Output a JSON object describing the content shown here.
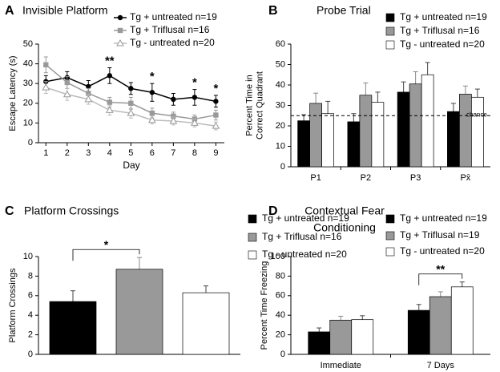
{
  "chart_data": [
    {
      "type": "line",
      "panel": "A",
      "title": [
        "Invisible Platform"
      ],
      "xlabel": "Day",
      "ylabel": [
        "Escape Latency (s)"
      ],
      "x": [
        1,
        2,
        3,
        4,
        5,
        6,
        7,
        8,
        9
      ],
      "xlim": [
        0.65,
        9.4
      ],
      "xticks": [
        1,
        2,
        3,
        4,
        5,
        6,
        7,
        8,
        9
      ],
      "ylim": [
        0,
        50
      ],
      "yticks": [
        0,
        10,
        20,
        30,
        40,
        50
      ],
      "series": [
        {
          "name": "Tg + untreated n=19",
          "color": "#000000",
          "marker": "circle",
          "values": [
            31,
            33,
            28.5,
            34,
            27.5,
            25.5,
            22,
            23,
            21
          ],
          "errors": [
            3,
            3,
            3,
            4,
            3,
            4.5,
            3,
            4,
            3
          ]
        },
        {
          "name": "Tg +  Triflusal n=16",
          "color": "#999999",
          "marker": "square",
          "values": [
            39.5,
            30.5,
            25,
            20.5,
            20,
            15,
            13.5,
            12,
            14
          ],
          "errors": [
            4,
            3,
            2.5,
            2.5,
            3,
            2.5,
            2,
            2,
            2.5
          ]
        },
        {
          "name": "Tg - untreated n=20",
          "color": "#bbbbbb",
          "marker": "triangle",
          "values": [
            28,
            24.5,
            22,
            16.5,
            15,
            11.5,
            11,
            10,
            8.5
          ],
          "errors": [
            3,
            3,
            2.5,
            2.5,
            2.5,
            2,
            2,
            2,
            2
          ]
        }
      ],
      "annotations": [
        "**",
        "*",
        "*",
        "*"
      ]
    },
    {
      "type": "bar",
      "panel": "B",
      "title": [
        "Probe Trial"
      ],
      "ylabel": [
        "Percent Time in",
        "Correct Quadrant"
      ],
      "categories": [
        "P1",
        "P2",
        "P3",
        "Px̄"
      ],
      "ylim": [
        0,
        60
      ],
      "yticks": [
        0,
        10,
        20,
        30,
        40,
        50,
        60
      ],
      "series": [
        {
          "name": "Tg + untreated n=19",
          "color": "#000000",
          "values": [
            22.5,
            22,
            36.5,
            27
          ],
          "errors": [
            3,
            4,
            5,
            4
          ]
        },
        {
          "name": "Tg +  Triflusal n=16",
          "color": "#999999",
          "values": [
            31,
            35,
            40.5,
            35.5
          ],
          "errors": [
            5,
            6,
            6,
            4
          ]
        },
        {
          "name": "Tg - untreated n=20",
          "color": "#ffffff",
          "values": [
            26,
            31.5,
            45,
            34
          ],
          "errors": [
            6,
            5,
            6,
            4
          ]
        }
      ],
      "reference_line": {
        "value": 25,
        "label": "chance"
      }
    },
    {
      "type": "bar",
      "panel": "C",
      "title": [
        "Platform Crossings"
      ],
      "ylabel": [
        "Platform Crossings"
      ],
      "categories": [
        null
      ],
      "ylim": [
        0,
        10
      ],
      "yticks": [
        0,
        2,
        4,
        6,
        8,
        10
      ],
      "series": [
        {
          "name": "Tg + untreated n=19",
          "color": "#000000",
          "values": [
            5.4
          ],
          "errors": [
            1.1
          ]
        },
        {
          "name": "Tg +  Triflusal n=16",
          "color": "#999999",
          "values": [
            8.7
          ],
          "errors": [
            1.2
          ]
        },
        {
          "name": "Tg - untreated n=20",
          "color": "#ffffff",
          "values": [
            6.3
          ],
          "errors": [
            0.7
          ]
        }
      ],
      "annotations": [
        "*"
      ]
    },
    {
      "type": "bar",
      "panel": "D",
      "title": [
        "Contextual Fear",
        "Conditioning"
      ],
      "ylabel": [
        "Percent Time Freezing"
      ],
      "categories": [
        "Immediate",
        "7 Days"
      ],
      "ylim": [
        0,
        100
      ],
      "yticks": [
        0,
        20,
        40,
        60,
        80,
        100
      ],
      "series": [
        {
          "name": "Tg + untreated n=19",
          "color": "#000000",
          "values": [
            23,
            45
          ],
          "errors": [
            4,
            6
          ]
        },
        {
          "name": "Tg +  Triflusal n=19",
          "color": "#999999",
          "values": [
            35,
            59
          ],
          "errors": [
            4,
            5
          ]
        },
        {
          "name": "Tg - untreated n=20",
          "color": "#ffffff",
          "values": [
            35.5,
            69
          ],
          "errors": [
            4,
            5
          ]
        }
      ],
      "annotations": [
        "**"
      ]
    }
  ]
}
